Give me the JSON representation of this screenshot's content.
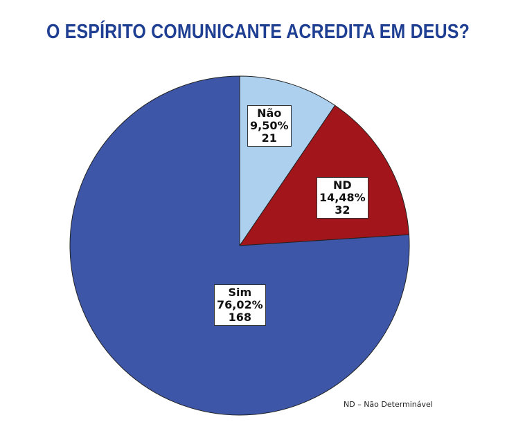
{
  "chart_data": {
    "type": "pie",
    "title": "O ESPÍRITO COMUNICANTE ACREDITA EM DEUS?",
    "slices": [
      {
        "name": "Não",
        "percent": 9.5,
        "percent_label": "9,50%",
        "count": 21,
        "color": "#acd0ee"
      },
      {
        "name": "ND",
        "percent": 14.48,
        "percent_label": "14,48%",
        "count": 32,
        "color": "#a2151b"
      },
      {
        "name": "Sim",
        "percent": 76.02,
        "percent_label": "76,02%",
        "count": 168,
        "color": "#3d56a8"
      }
    ],
    "start": "top",
    "direction": "clockwise",
    "note": "ND – Não Determinável"
  }
}
